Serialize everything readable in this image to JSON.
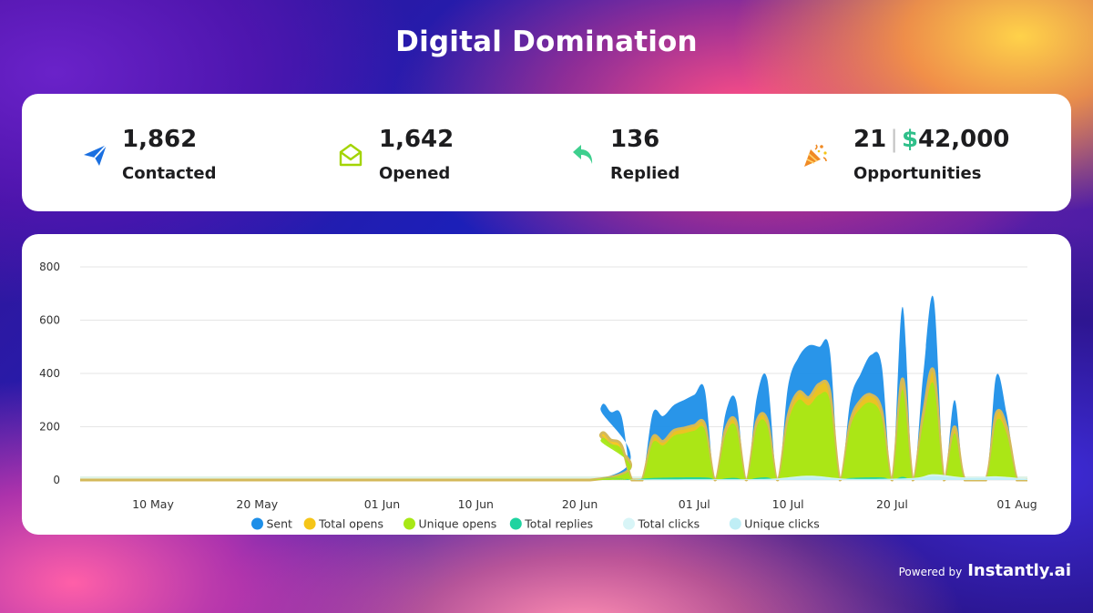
{
  "header": {
    "title": "Digital Domination"
  },
  "stats": [
    {
      "value": "1,862",
      "label": "Contacted",
      "icon": "paper-plane-icon",
      "color": "#1a6fe0"
    },
    {
      "value": "1,642",
      "label": "Opened",
      "icon": "open-envelope-icon",
      "color": "#a3d400"
    },
    {
      "value": "136",
      "label": "Replied",
      "icon": "reply-arrow-icon",
      "color": "#3ecf8e"
    },
    {
      "count": "21",
      "separator": "|",
      "currency": "$",
      "amount": "42,000",
      "label": "Opportunities",
      "icon": "party-popper-icon",
      "color": "#f08a24"
    }
  ],
  "footer": {
    "powered_by": "Powered by",
    "brand": "Instantly.ai"
  },
  "chart_data": {
    "type": "area",
    "ylim": [
      0,
      800
    ],
    "yticks": [
      0,
      200,
      400,
      600,
      800
    ],
    "x_start": "2024-05-03",
    "x_end": "2024-08-02",
    "xticks": [
      {
        "date": "2024-05-10",
        "label": "10 May"
      },
      {
        "date": "2024-05-20",
        "label": "20 May"
      },
      {
        "date": "2024-06-01",
        "label": "01 Jun"
      },
      {
        "date": "2024-06-10",
        "label": "10 Jun"
      },
      {
        "date": "2024-06-20",
        "label": "20 Jun"
      },
      {
        "date": "2024-07-01",
        "label": "01 Jul"
      },
      {
        "date": "2024-07-10",
        "label": "10 Jul"
      },
      {
        "date": "2024-07-20",
        "label": "20 Jul"
      },
      {
        "date": "2024-08-01",
        "label": "01 Aug"
      }
    ],
    "grid": true,
    "legend": "bottom",
    "series": [
      {
        "name": "Sent",
        "color": "#1e8fe8",
        "points": [
          [
            "2024-05-03",
            0
          ],
          [
            "2024-06-21",
            0
          ],
          [
            "2024-06-22",
            270
          ],
          [
            "2024-06-23",
            255
          ],
          [
            "2024-06-24",
            240
          ],
          [
            "2024-06-25",
            0
          ],
          [
            "2024-06-26",
            0
          ],
          [
            "2024-06-27",
            250
          ],
          [
            "2024-06-28",
            240
          ],
          [
            "2024-06-29",
            280
          ],
          [
            "2024-06-30",
            300
          ],
          [
            "2024-07-01",
            320
          ],
          [
            "2024-07-02",
            340
          ],
          [
            "2024-07-03",
            0
          ],
          [
            "2024-07-04",
            250
          ],
          [
            "2024-07-05",
            300
          ],
          [
            "2024-07-06",
            0
          ],
          [
            "2024-07-07",
            310
          ],
          [
            "2024-07-08",
            380
          ],
          [
            "2024-07-09",
            0
          ],
          [
            "2024-07-10",
            350
          ],
          [
            "2024-07-11",
            460
          ],
          [
            "2024-07-12",
            505
          ],
          [
            "2024-07-13",
            500
          ],
          [
            "2024-07-14",
            490
          ],
          [
            "2024-07-15",
            0
          ],
          [
            "2024-07-16",
            300
          ],
          [
            "2024-07-17",
            400
          ],
          [
            "2024-07-18",
            470
          ],
          [
            "2024-07-19",
            430
          ],
          [
            "2024-07-20",
            0
          ],
          [
            "2024-07-21",
            650
          ],
          [
            "2024-07-22",
            0
          ],
          [
            "2024-07-23",
            400
          ],
          [
            "2024-07-24",
            680
          ],
          [
            "2024-07-25",
            0
          ],
          [
            "2024-07-26",
            300
          ],
          [
            "2024-07-27",
            0
          ],
          [
            "2024-07-29",
            0
          ],
          [
            "2024-07-30",
            390
          ],
          [
            "2024-07-31",
            250
          ],
          [
            "2024-08-01",
            0
          ],
          [
            "2024-08-02",
            0
          ]
        ]
      },
      {
        "name": "Total opens",
        "color": "#f5c518",
        "points": [
          [
            "2024-05-03",
            0
          ],
          [
            "2024-06-21",
            0
          ],
          [
            "2024-06-22",
            170
          ],
          [
            "2024-06-23",
            150
          ],
          [
            "2024-06-24",
            130
          ],
          [
            "2024-06-25",
            0
          ],
          [
            "2024-06-26",
            0
          ],
          [
            "2024-06-27",
            160
          ],
          [
            "2024-06-28",
            145
          ],
          [
            "2024-06-29",
            185
          ],
          [
            "2024-06-30",
            195
          ],
          [
            "2024-07-01",
            205
          ],
          [
            "2024-07-02",
            210
          ],
          [
            "2024-07-03",
            0
          ],
          [
            "2024-07-04",
            190
          ],
          [
            "2024-07-05",
            220
          ],
          [
            "2024-07-06",
            0
          ],
          [
            "2024-07-07",
            220
          ],
          [
            "2024-07-08",
            225
          ],
          [
            "2024-07-09",
            0
          ],
          [
            "2024-07-10",
            240
          ],
          [
            "2024-07-11",
            330
          ],
          [
            "2024-07-12",
            310
          ],
          [
            "2024-07-13",
            360
          ],
          [
            "2024-07-14",
            335
          ],
          [
            "2024-07-15",
            0
          ],
          [
            "2024-07-16",
            220
          ],
          [
            "2024-07-17",
            300
          ],
          [
            "2024-07-18",
            320
          ],
          [
            "2024-07-19",
            260
          ],
          [
            "2024-07-20",
            0
          ],
          [
            "2024-07-21",
            380
          ],
          [
            "2024-07-22",
            0
          ],
          [
            "2024-07-23",
            250
          ],
          [
            "2024-07-24",
            410
          ],
          [
            "2024-07-25",
            0
          ],
          [
            "2024-07-26",
            200
          ],
          [
            "2024-07-27",
            0
          ],
          [
            "2024-07-29",
            0
          ],
          [
            "2024-07-30",
            250
          ],
          [
            "2024-07-31",
            200
          ],
          [
            "2024-08-01",
            0
          ],
          [
            "2024-08-02",
            0
          ]
        ]
      },
      {
        "name": "Unique opens",
        "color": "#a8e816",
        "points": [
          [
            "2024-05-03",
            0
          ],
          [
            "2024-06-21",
            0
          ],
          [
            "2024-06-22",
            150
          ],
          [
            "2024-06-23",
            135
          ],
          [
            "2024-06-24",
            115
          ],
          [
            "2024-06-25",
            0
          ],
          [
            "2024-06-26",
            0
          ],
          [
            "2024-06-27",
            140
          ],
          [
            "2024-06-28",
            130
          ],
          [
            "2024-06-29",
            165
          ],
          [
            "2024-06-30",
            175
          ],
          [
            "2024-07-01",
            185
          ],
          [
            "2024-07-02",
            190
          ],
          [
            "2024-07-03",
            0
          ],
          [
            "2024-07-04",
            170
          ],
          [
            "2024-07-05",
            200
          ],
          [
            "2024-07-06",
            0
          ],
          [
            "2024-07-07",
            200
          ],
          [
            "2024-07-08",
            205
          ],
          [
            "2024-07-09",
            0
          ],
          [
            "2024-07-10",
            215
          ],
          [
            "2024-07-11",
            300
          ],
          [
            "2024-07-12",
            280
          ],
          [
            "2024-07-13",
            320
          ],
          [
            "2024-07-14",
            300
          ],
          [
            "2024-07-15",
            0
          ],
          [
            "2024-07-16",
            200
          ],
          [
            "2024-07-17",
            270
          ],
          [
            "2024-07-18",
            290
          ],
          [
            "2024-07-19",
            235
          ],
          [
            "2024-07-20",
            0
          ],
          [
            "2024-07-21",
            340
          ],
          [
            "2024-07-22",
            0
          ],
          [
            "2024-07-23",
            220
          ],
          [
            "2024-07-24",
            360
          ],
          [
            "2024-07-25",
            0
          ],
          [
            "2024-07-26",
            175
          ],
          [
            "2024-07-27",
            0
          ],
          [
            "2024-07-29",
            0
          ],
          [
            "2024-07-30",
            220
          ],
          [
            "2024-07-31",
            175
          ],
          [
            "2024-08-01",
            0
          ],
          [
            "2024-08-02",
            0
          ]
        ]
      },
      {
        "name": "Total replies",
        "color": "#1fd3a0",
        "points": [
          [
            "2024-05-03",
            0
          ],
          [
            "2024-06-21",
            0
          ],
          [
            "2024-06-22",
            8
          ],
          [
            "2024-06-24",
            6
          ],
          [
            "2024-06-25",
            0
          ],
          [
            "2024-06-27",
            8
          ],
          [
            "2024-07-02",
            10
          ],
          [
            "2024-07-03",
            0
          ],
          [
            "2024-07-04",
            6
          ],
          [
            "2024-07-05",
            8
          ],
          [
            "2024-07-06",
            0
          ],
          [
            "2024-07-07",
            8
          ],
          [
            "2024-07-08",
            10
          ],
          [
            "2024-07-09",
            0
          ],
          [
            "2024-07-10",
            10
          ],
          [
            "2024-07-13",
            14
          ],
          [
            "2024-07-15",
            0
          ],
          [
            "2024-07-16",
            8
          ],
          [
            "2024-07-19",
            10
          ],
          [
            "2024-07-20",
            0
          ],
          [
            "2024-07-21",
            12
          ],
          [
            "2024-07-22",
            0
          ],
          [
            "2024-07-23",
            10
          ],
          [
            "2024-07-24",
            14
          ],
          [
            "2024-07-25",
            0
          ],
          [
            "2024-07-26",
            8
          ],
          [
            "2024-07-27",
            0
          ],
          [
            "2024-07-30",
            10
          ],
          [
            "2024-07-31",
            8
          ],
          [
            "2024-08-01",
            0
          ],
          [
            "2024-08-02",
            0
          ]
        ]
      },
      {
        "name": "Total clicks",
        "color": "#d8f5f7",
        "points": [
          [
            "2024-05-03",
            0
          ],
          [
            "2024-06-21",
            0
          ],
          [
            "2024-06-25",
            2
          ],
          [
            "2024-07-01",
            3
          ],
          [
            "2024-07-08",
            4
          ],
          [
            "2024-07-12",
            16
          ],
          [
            "2024-07-16",
            4
          ],
          [
            "2024-07-22",
            8
          ],
          [
            "2024-07-24",
            22
          ],
          [
            "2024-07-27",
            10
          ],
          [
            "2024-07-30",
            14
          ],
          [
            "2024-08-02",
            4
          ]
        ]
      },
      {
        "name": "Unique clicks",
        "color": "#bfeef5",
        "points": [
          [
            "2024-05-03",
            0
          ],
          [
            "2024-06-21",
            0
          ],
          [
            "2024-06-25",
            1
          ],
          [
            "2024-07-01",
            2
          ],
          [
            "2024-07-08",
            3
          ],
          [
            "2024-07-12",
            10
          ],
          [
            "2024-07-16",
            3
          ],
          [
            "2024-07-22",
            6
          ],
          [
            "2024-07-24",
            14
          ],
          [
            "2024-07-27",
            7
          ],
          [
            "2024-07-30",
            9
          ],
          [
            "2024-08-02",
            3
          ]
        ]
      }
    ]
  }
}
